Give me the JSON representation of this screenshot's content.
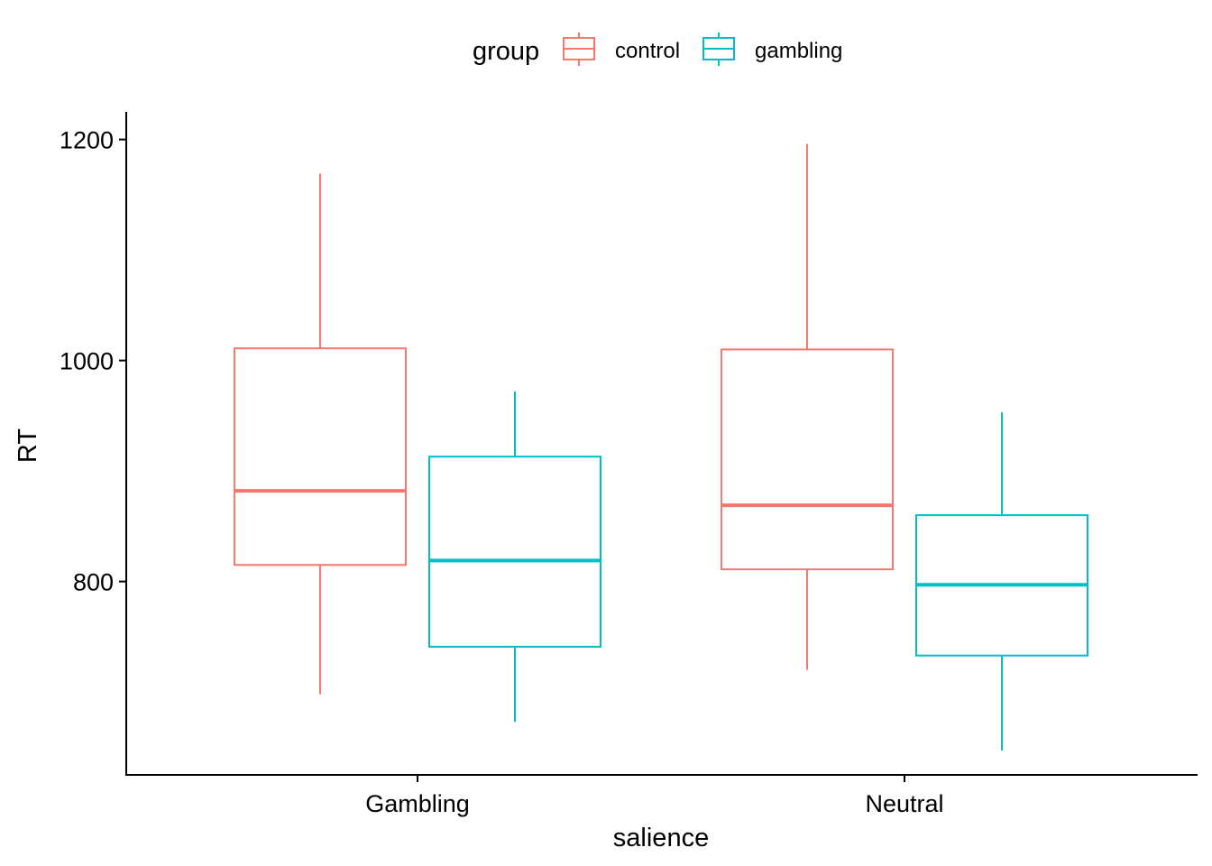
{
  "chart_data": {
    "type": "boxplot",
    "xlabel": "salience",
    "ylabel": "RT",
    "categories": [
      "Gambling",
      "Neutral"
    ],
    "ylim": [
      625,
      1225
    ],
    "yticks": [
      800,
      1000,
      1200
    ],
    "grid": false,
    "legend": {
      "title": "group",
      "placement": "top"
    },
    "series": [
      {
        "name": "control",
        "color": "#F8766D",
        "boxes": [
          {
            "category": "Gambling",
            "whisker_low": 698,
            "q1": 815,
            "median": 882,
            "q3": 1011,
            "whisker_high": 1169
          },
          {
            "category": "Neutral",
            "whisker_low": 720,
            "q1": 811,
            "median": 869,
            "q3": 1010,
            "whisker_high": 1196
          }
        ]
      },
      {
        "name": "gambling",
        "color": "#00BFC4",
        "boxes": [
          {
            "category": "Gambling",
            "whisker_low": 673,
            "q1": 741,
            "median": 819,
            "q3": 913,
            "whisker_high": 972
          },
          {
            "category": "Neutral",
            "whisker_low": 647,
            "q1": 733,
            "median": 797,
            "q3": 860,
            "whisker_high": 953
          }
        ]
      }
    ]
  }
}
